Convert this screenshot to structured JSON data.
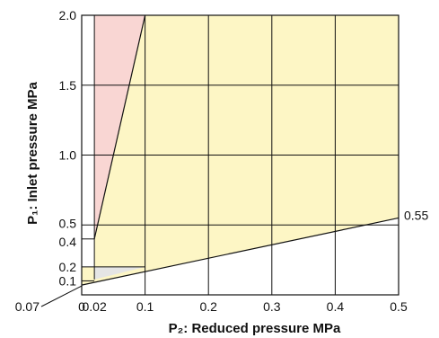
{
  "chart_data": {
    "type": "area",
    "xlabel": "P₂: Reduced pressure MPa",
    "ylabel": "P₁: Inlet pressure MPa",
    "xlim": [
      0,
      0.5
    ],
    "ylim": [
      0,
      2.0
    ],
    "grid": true,
    "x_ticks": [
      {
        "label": "0",
        "value": 0
      },
      {
        "label": "0.02",
        "value": 0.02
      },
      {
        "label": "0.1",
        "value": 0.1
      },
      {
        "label": "0.2",
        "value": 0.2
      },
      {
        "label": "0.3",
        "value": 0.3
      },
      {
        "label": "0.4",
        "value": 0.4
      },
      {
        "label": "0.5",
        "value": 0.5
      }
    ],
    "y_ticks": [
      {
        "label": "0.1",
        "value": 0.1
      },
      {
        "label": "0.2",
        "value": 0.2
      },
      {
        "label": "0.4",
        "value": 0.4
      },
      {
        "label": "0.5",
        "value": 0.5
      },
      {
        "label": "1.0",
        "value": 1.0
      },
      {
        "label": "1.5",
        "value": 1.5
      },
      {
        "label": "2.0",
        "value": 2.0
      }
    ],
    "annotations": [
      {
        "text": "0.55",
        "x": 0.5,
        "y": 0.55
      },
      {
        "text": "0.07",
        "x": 0,
        "y": 0.07
      }
    ],
    "regions": [
      {
        "fill": "#fdf6c5",
        "polygon": [
          [
            0.02,
            0.4
          ],
          [
            0.1,
            2.0
          ],
          [
            0.5,
            2.0
          ],
          [
            0.5,
            0.55
          ],
          [
            0.0,
            0.07
          ],
          [
            0.0,
            0.2
          ],
          [
            0.02,
            0.2
          ]
        ]
      },
      {
        "fill": "#f9d6d3",
        "polygon": [
          [
            0.02,
            0.4
          ],
          [
            0.02,
            2.0
          ],
          [
            0.1,
            2.0
          ]
        ]
      },
      {
        "fill": "#e5e5e5",
        "polygon": [
          [
            0.02,
            0.2
          ],
          [
            0.02,
            0.11
          ],
          [
            0.1,
            0.2
          ]
        ]
      }
    ],
    "lines": [
      {
        "points": [
          [
            0.02,
            0.4
          ],
          [
            0.1,
            2.0
          ]
        ]
      },
      {
        "points": [
          [
            0.0,
            0.07
          ],
          [
            0.5,
            0.55
          ]
        ]
      }
    ]
  }
}
